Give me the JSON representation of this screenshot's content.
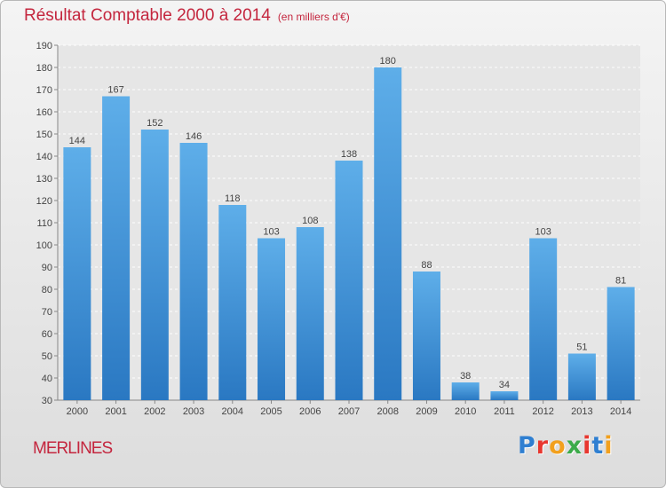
{
  "chart_data": {
    "type": "bar",
    "title": "Résultat Comptable 2000 à 2014",
    "subtitle": "(en milliers d'€)",
    "categories": [
      "2000",
      "2001",
      "2002",
      "2003",
      "2004",
      "2005",
      "2006",
      "2007",
      "2008",
      "2009",
      "2010",
      "2011",
      "2012",
      "2013",
      "2014"
    ],
    "values": [
      144,
      167,
      152,
      146,
      118,
      103,
      108,
      138,
      180,
      88,
      38,
      34,
      103,
      51,
      81
    ],
    "ylim": [
      30,
      190
    ],
    "yticks": [
      30,
      40,
      50,
      60,
      70,
      80,
      90,
      100,
      110,
      120,
      130,
      140,
      150,
      160,
      170,
      180,
      190
    ],
    "grid": true,
    "bar_color": "#3a8fd6"
  },
  "footer": {
    "commune": "MERLINES",
    "logo_letters": [
      "P",
      "r",
      "o",
      "x",
      "i",
      "t",
      "i"
    ],
    "logo_colors": [
      "#2f7fd1",
      "#e8372f",
      "#f2a01d",
      "#3cab4a",
      "#e8372f",
      "#2f7fd1",
      "#f2a01d"
    ]
  }
}
